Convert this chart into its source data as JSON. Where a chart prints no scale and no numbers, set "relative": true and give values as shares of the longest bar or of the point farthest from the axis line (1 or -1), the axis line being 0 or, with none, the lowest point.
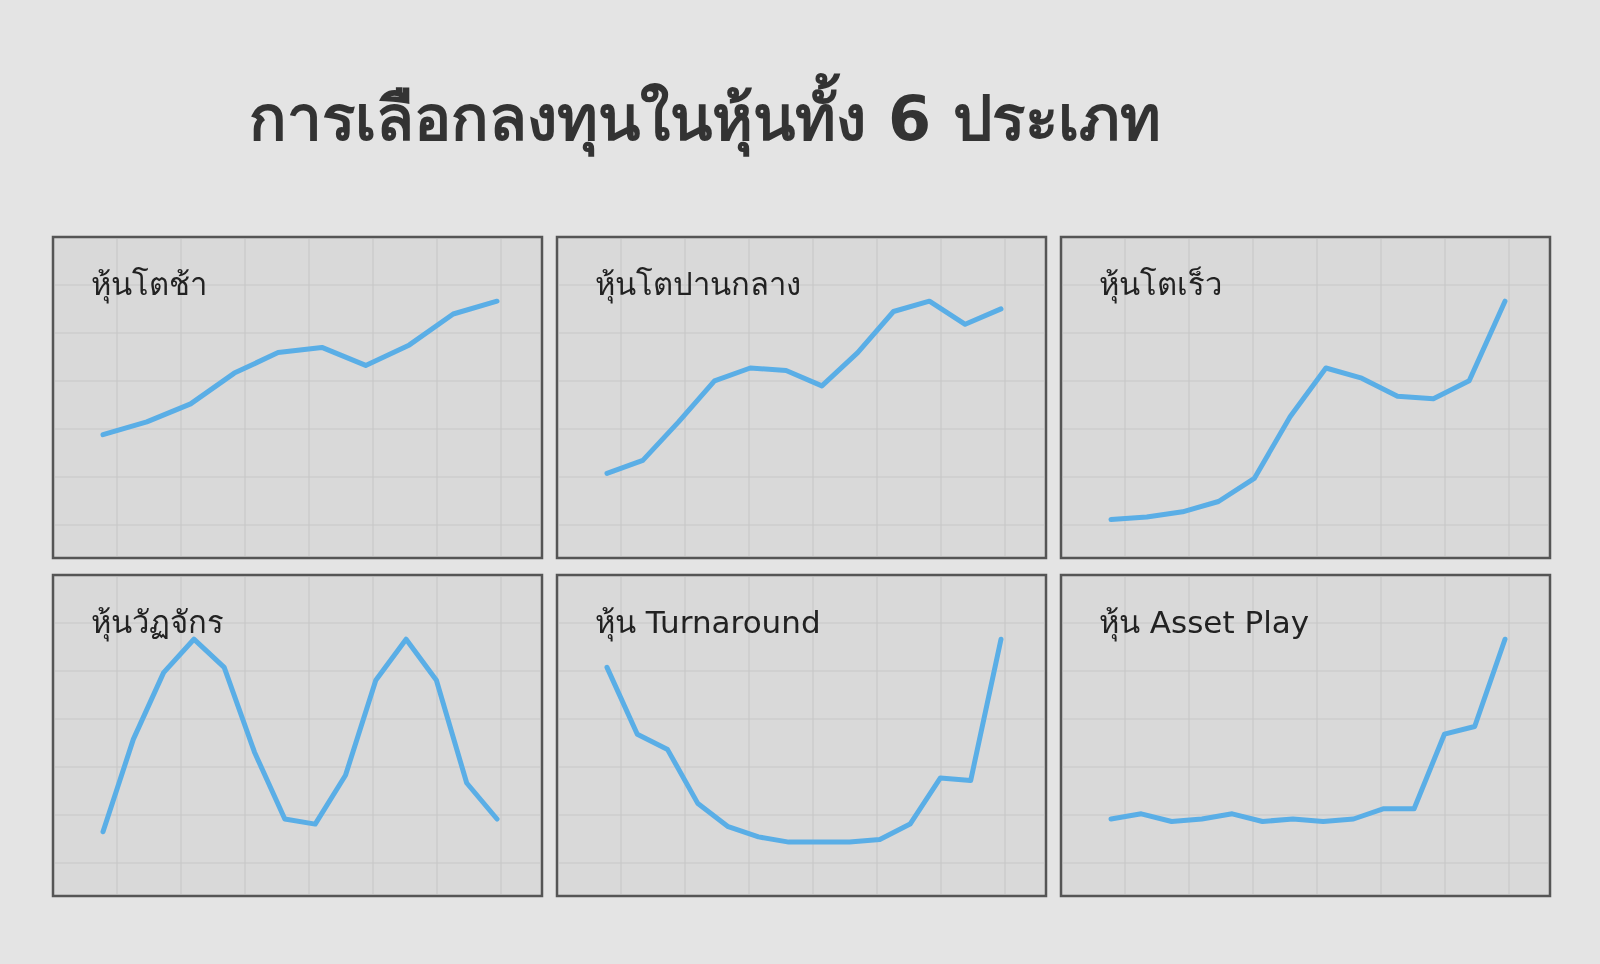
{
  "chart_data": [
    {
      "type": "line",
      "title": "หุ้นโตช้า",
      "annotations": [
        "การเลือกลงทุนในหุ้นทั้ง 6 ประเภท"
      ],
      "relative": true,
      "grid": true,
      "color": "#5aaee6",
      "categories": [
        null,
        null,
        null,
        null,
        null,
        null,
        null,
        null,
        null,
        null
      ],
      "values": [
        0.48,
        0.53,
        0.6,
        0.72,
        0.8,
        0.82,
        0.75,
        0.83,
        0.95,
        1
      ]
    },
    {
      "type": "line",
      "title": "หุ้นโตปานกลาง",
      "relative": true,
      "grid": true,
      "color": "#5aaee6",
      "categories": [
        null,
        null,
        null,
        null,
        null,
        null,
        null,
        null,
        null,
        null,
        null,
        null
      ],
      "values": [
        0.33,
        0.38,
        0.53,
        0.69,
        0.74,
        0.73,
        0.67,
        0.8,
        0.96,
        1,
        0.91,
        0.97
      ]
    },
    {
      "type": "line",
      "title": "หุ้นโตเร็ว",
      "relative": true,
      "grid": true,
      "color": "#5aaee6",
      "categories": [
        null,
        null,
        null,
        null,
        null,
        null,
        null,
        null,
        null,
        null,
        null,
        null
      ],
      "values": [
        0.15,
        0.16,
        0.18,
        0.22,
        0.31,
        0.55,
        0.74,
        0.7,
        0.63,
        0.62,
        0.69,
        1
      ]
    },
    {
      "type": "line",
      "title": "หุ้นวัฏจักร",
      "relative": true,
      "grid": true,
      "color": "#5aaee6",
      "categories": [
        null,
        null,
        null,
        null,
        null,
        null,
        null,
        null,
        null,
        null,
        null,
        null,
        null,
        null
      ],
      "values": [
        0.25,
        0.61,
        0.87,
        1,
        0.89,
        0.56,
        0.3,
        0.28,
        0.47,
        0.84,
        1,
        0.84,
        0.44,
        0.3
      ]
    },
    {
      "type": "line",
      "title": "หุ้น Turnaround",
      "relative": true,
      "grid": true,
      "color": "#5aaee6",
      "categories": [
        null,
        null,
        null,
        null,
        null,
        null,
        null,
        null,
        null,
        null,
        null,
        null,
        null,
        null
      ],
      "values": [
        0.89,
        0.63,
        0.57,
        0.36,
        0.27,
        0.23,
        0.21,
        0.21,
        0.21,
        0.22,
        0.28,
        0.46,
        0.45,
        1
      ]
    },
    {
      "type": "line",
      "title": "หุ้น Asset Play",
      "relative": true,
      "grid": true,
      "color": "#5aaee6",
      "categories": [
        null,
        null,
        null,
        null,
        null,
        null,
        null,
        null,
        null,
        null,
        null,
        null,
        null,
        null
      ],
      "values": [
        0.3,
        0.32,
        0.29,
        0.3,
        0.32,
        0.29,
        0.3,
        0.29,
        0.3,
        0.34,
        0.34,
        0.63,
        0.66,
        1
      ]
    }
  ]
}
